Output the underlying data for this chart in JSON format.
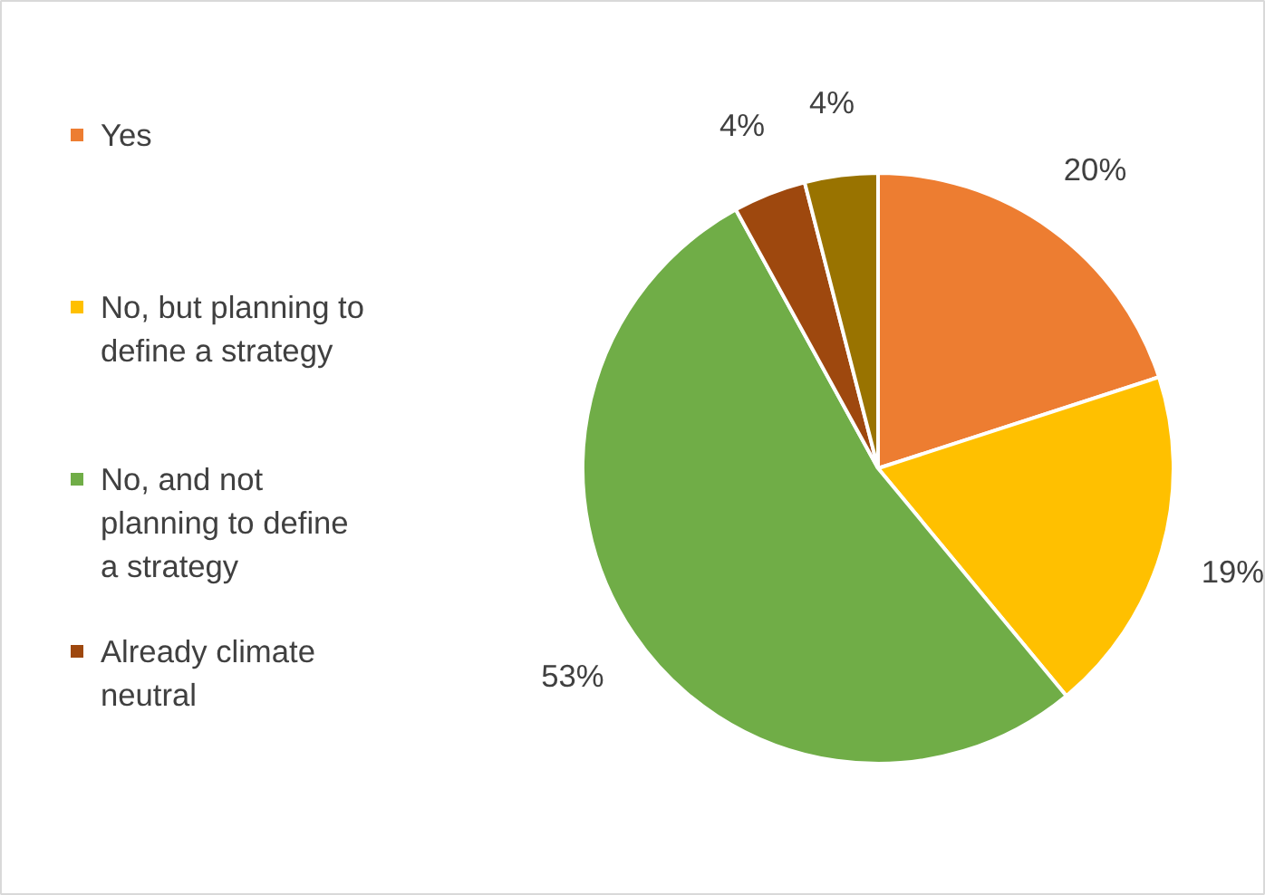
{
  "chart_data": {
    "type": "pie",
    "categories": [
      "Yes",
      "No, but planning to define a strategy",
      "No, and not planning to define a strategy",
      "Already climate neutral",
      null
    ],
    "values": [
      20,
      19,
      53,
      4,
      4
    ],
    "colors": [
      "#ed7d31",
      "#ffc000",
      "#70ad47",
      "#9e480e",
      "#997300"
    ],
    "value_labels": [
      "20%",
      "19%",
      "53%",
      "4%",
      "4%"
    ],
    "legend": "left"
  }
}
